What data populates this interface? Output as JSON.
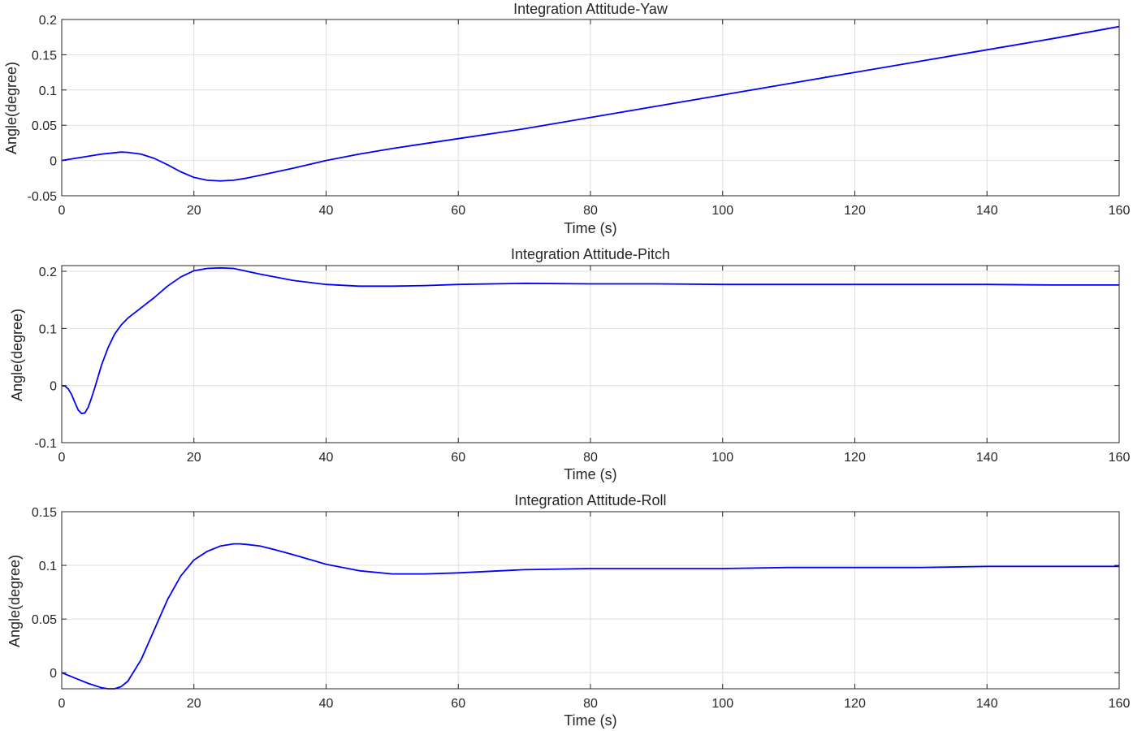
{
  "chart_data": [
    {
      "type": "line",
      "title": "Integration Attitude-Yaw",
      "xlabel": "Time (s)",
      "ylabel": "Angle(degree)",
      "xlim": [
        0,
        160
      ],
      "ylim": [
        -0.05,
        0.2
      ],
      "xticks": [
        "0",
        "20",
        "40",
        "60",
        "80",
        "100",
        "120",
        "140",
        "160"
      ],
      "yticks": [
        "-0.05",
        "0",
        "0.05",
        "0.1",
        "0.15",
        "0.2"
      ],
      "grid": true,
      "series": [
        {
          "color": "#0000ff",
          "x": [
            0,
            2,
            4,
            6,
            8,
            9,
            10,
            12,
            14,
            16,
            18,
            20,
            22,
            24,
            26,
            28,
            30,
            35,
            40,
            45,
            50,
            60,
            70,
            80,
            90,
            100,
            110,
            120,
            130,
            140,
            150,
            160
          ],
          "y": [
            0,
            0.003,
            0.006,
            0.009,
            0.011,
            0.012,
            0.0115,
            0.009,
            0.003,
            -0.006,
            -0.016,
            -0.024,
            -0.028,
            -0.029,
            -0.028,
            -0.025,
            -0.021,
            -0.011,
            0.0,
            0.009,
            0.017,
            0.031,
            0.045,
            0.061,
            0.077,
            0.093,
            0.109,
            0.125,
            0.141,
            0.157,
            0.173,
            0.19
          ]
        }
      ]
    },
    {
      "type": "line",
      "title": "Integration Attitude-Pitch",
      "xlabel": "Time (s)",
      "ylabel": "Angle(degree)",
      "xlim": [
        0,
        160
      ],
      "ylim": [
        -0.1,
        0.21
      ],
      "xticks": [
        "0",
        "20",
        "40",
        "60",
        "80",
        "100",
        "120",
        "140",
        "160"
      ],
      "yticks": [
        "-0.1",
        "0",
        "0.1",
        "0.2"
      ],
      "grid": true,
      "series": [
        {
          "color": "#0000ff",
          "x": [
            0,
            0.5,
            1,
            1.5,
            2,
            2.5,
            3,
            3.5,
            4,
            4.5,
            5,
            6,
            7,
            8,
            9,
            10,
            12,
            14,
            16,
            18,
            20,
            22,
            24,
            26,
            28,
            30,
            35,
            40,
            45,
            50,
            55,
            60,
            70,
            80,
            90,
            100,
            110,
            120,
            130,
            140,
            150,
            160
          ],
          "y": [
            0,
            -0.001,
            -0.006,
            -0.016,
            -0.03,
            -0.043,
            -0.049,
            -0.048,
            -0.038,
            -0.022,
            -0.004,
            0.035,
            0.066,
            0.09,
            0.106,
            0.118,
            0.136,
            0.154,
            0.174,
            0.19,
            0.201,
            0.205,
            0.206,
            0.205,
            0.2,
            0.195,
            0.184,
            0.177,
            0.174,
            0.174,
            0.175,
            0.177,
            0.179,
            0.178,
            0.178,
            0.177,
            0.177,
            0.177,
            0.177,
            0.177,
            0.176,
            0.176
          ]
        }
      ]
    },
    {
      "type": "line",
      "title": "Integration Attitude-Roll",
      "xlabel": "Time (s)",
      "ylabel": "Angle(degree)",
      "xlim": [
        0,
        160
      ],
      "ylim": [
        -0.015,
        0.15
      ],
      "xticks": [
        "0",
        "20",
        "40",
        "60",
        "80",
        "100",
        "120",
        "140",
        "160"
      ],
      "yticks": [
        "0",
        "0.05",
        "0.1",
        "0.15"
      ],
      "grid": true,
      "series": [
        {
          "color": "#0000ff",
          "x": [
            0,
            2,
            4,
            6,
            7,
            8,
            9,
            10,
            12,
            14,
            16,
            18,
            20,
            22,
            24,
            26,
            27,
            28,
            30,
            32,
            35,
            40,
            45,
            50,
            55,
            60,
            70,
            80,
            90,
            100,
            110,
            120,
            130,
            140,
            150,
            160
          ],
          "y": [
            0,
            -0.005,
            -0.01,
            -0.014,
            -0.015,
            -0.015,
            -0.013,
            -0.008,
            0.012,
            0.04,
            0.068,
            0.09,
            0.105,
            0.113,
            0.118,
            0.12,
            0.12,
            0.1195,
            0.118,
            0.115,
            0.11,
            0.101,
            0.095,
            0.092,
            0.092,
            0.093,
            0.096,
            0.097,
            0.097,
            0.097,
            0.098,
            0.098,
            0.098,
            0.099,
            0.099,
            0.099
          ]
        }
      ]
    }
  ]
}
